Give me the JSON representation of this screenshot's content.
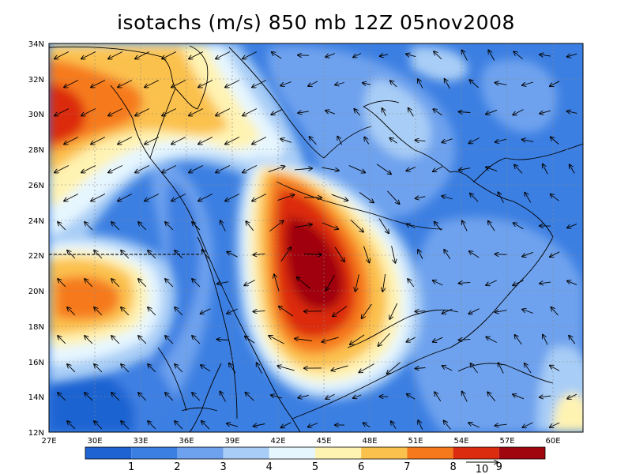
{
  "title": "isotachs (m/s) 850 mb 12Z 05nov2008",
  "map": {
    "lon_ticks": [
      "27E",
      "30E",
      "33E",
      "36E",
      "39E",
      "42E",
      "45E",
      "48E",
      "51E",
      "54E",
      "57E",
      "60E"
    ],
    "lat_ticks": [
      "34N",
      "32N",
      "30N",
      "28N",
      "26N",
      "24N",
      "22N",
      "20N",
      "18N",
      "16N",
      "14N",
      "12N"
    ],
    "lon_range": [
      27,
      62
    ],
    "lat_range": [
      12,
      34
    ]
  },
  "colorbar": {
    "colors": [
      "#1f63d2",
      "#3c7fe2",
      "#6ea2ee",
      "#a8cdf6",
      "#e6f6ff",
      "#fff3b2",
      "#fbc14d",
      "#f67a1c",
      "#dc2c10",
      "#a0060d"
    ],
    "labels": [
      "1",
      "2",
      "3",
      "4",
      "5",
      "6",
      "7",
      "8",
      "9"
    ]
  },
  "vector_ref": {
    "label": "10"
  }
}
